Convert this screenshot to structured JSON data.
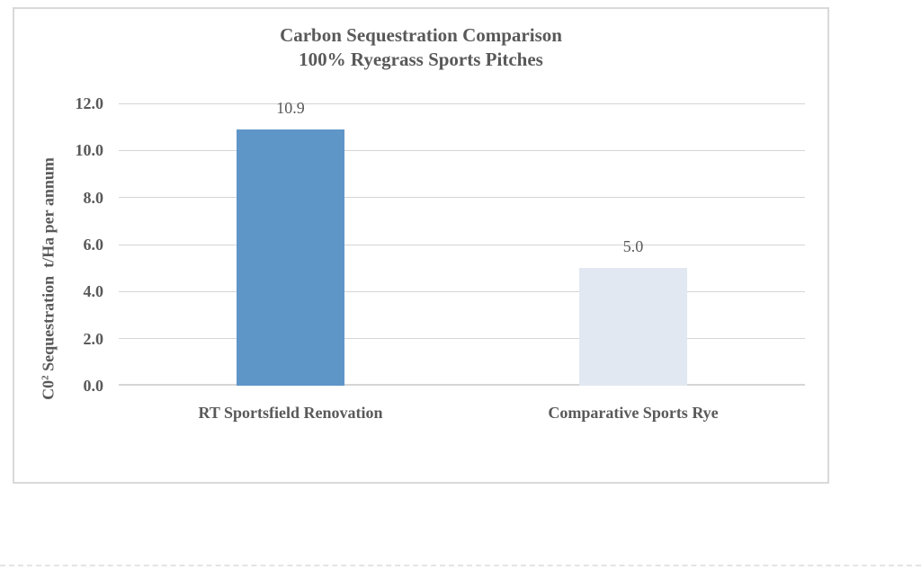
{
  "chart": {
    "title_line1": "Carbon Sequestration Comparison",
    "title_line2": "100% Ryegrass Sports Pitches",
    "y_axis_title": {
      "prefix": "C0",
      "superscript": "2",
      "rest": " Sequestration  t/Ha per annum"
    }
  },
  "chart_data": {
    "type": "bar",
    "title": "Carbon Sequestration Comparison",
    "subtitle": "100% Ryegrass Sports Pitches",
    "categories": [
      "RT Sportsfield Renovation",
      "Comparative Sports Rye"
    ],
    "values": [
      10.9,
      5.0
    ],
    "data_labels": [
      "10.9",
      "5.0"
    ],
    "bar_colors": [
      "#5F96C8",
      "#E2E8F1"
    ],
    "xlabel": "",
    "ylabel": "C0² Sequestration  t/Ha per annum",
    "ylim": [
      0,
      12
    ],
    "ytick_step": 2,
    "ytick_labels": [
      "0.0",
      "2.0",
      "4.0",
      "6.0",
      "8.0",
      "10.0",
      "12.0"
    ],
    "grid": true,
    "legend": false,
    "text_color": "#595959",
    "gridline_color": "#D5D5D5",
    "frame_border_color": "#D9D9D9"
  }
}
